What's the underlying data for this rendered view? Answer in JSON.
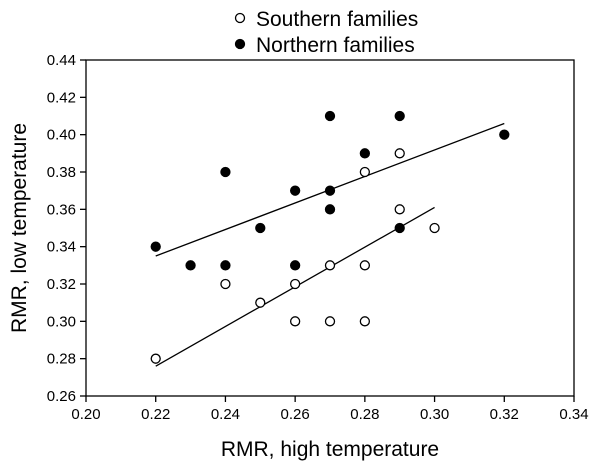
{
  "chart_data": {
    "type": "scatter",
    "xlabel": "RMR, high temperature",
    "ylabel": "RMR, low temperature",
    "xlim": [
      0.2,
      0.34
    ],
    "ylim": [
      0.26,
      0.44
    ],
    "xticks": [
      "0.20",
      "0.22",
      "0.24",
      "0.26",
      "0.28",
      "0.30",
      "0.32",
      "0.34"
    ],
    "yticks": [
      "0.26",
      "0.28",
      "0.30",
      "0.32",
      "0.34",
      "0.36",
      "0.38",
      "0.40",
      "0.42",
      "0.44"
    ],
    "grid": false,
    "legend_position": "top-center, above plot",
    "series": [
      {
        "name": "Southern families",
        "marker": "open-circle",
        "points": [
          [
            0.22,
            0.28
          ],
          [
            0.24,
            0.32
          ],
          [
            0.25,
            0.31
          ],
          [
            0.26,
            0.32
          ],
          [
            0.26,
            0.3
          ],
          [
            0.27,
            0.33
          ],
          [
            0.27,
            0.3
          ],
          [
            0.28,
            0.33
          ],
          [
            0.28,
            0.3
          ],
          [
            0.28,
            0.38
          ],
          [
            0.29,
            0.39
          ],
          [
            0.29,
            0.36
          ],
          [
            0.3,
            0.35
          ]
        ],
        "fit_line": [
          [
            0.22,
            0.276
          ],
          [
            0.3,
            0.361
          ]
        ]
      },
      {
        "name": "Northern families",
        "marker": "filled-circle",
        "points": [
          [
            0.22,
            0.34
          ],
          [
            0.23,
            0.33
          ],
          [
            0.24,
            0.33
          ],
          [
            0.24,
            0.38
          ],
          [
            0.25,
            0.35
          ],
          [
            0.26,
            0.33
          ],
          [
            0.26,
            0.37
          ],
          [
            0.27,
            0.41
          ],
          [
            0.27,
            0.37
          ],
          [
            0.27,
            0.36
          ],
          [
            0.28,
            0.39
          ],
          [
            0.29,
            0.41
          ],
          [
            0.29,
            0.35
          ],
          [
            0.32,
            0.4
          ]
        ],
        "fit_line": [
          [
            0.22,
            0.335
          ],
          [
            0.32,
            0.406
          ]
        ]
      }
    ],
    "colors": {
      "marker_stroke": "#000000",
      "filled_marker": "#000000",
      "open_marker": "#ffffff",
      "axis": "#000000"
    }
  }
}
